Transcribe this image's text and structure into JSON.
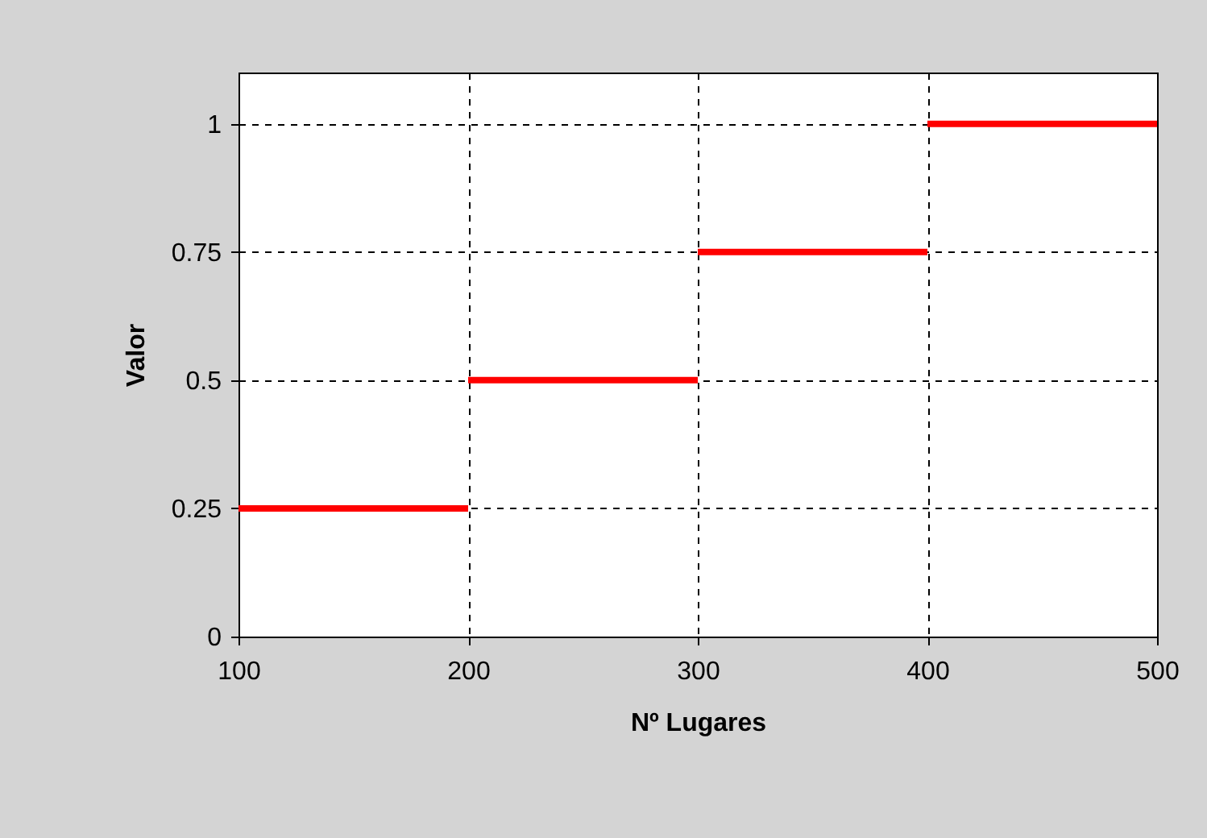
{
  "chart_data": {
    "type": "line",
    "xlabel": "Nº Lugares",
    "ylabel": "Valor",
    "series": [
      {
        "color": "#ff0000",
        "x": [
          100,
          200
        ],
        "values": [
          0.25,
          0.25
        ]
      },
      {
        "color": "#ff0000",
        "x": [
          200,
          300
        ],
        "values": [
          0.5,
          0.5
        ]
      },
      {
        "color": "#ff0000",
        "x": [
          300,
          400
        ],
        "values": [
          0.75,
          0.75
        ]
      },
      {
        "color": "#ff0000",
        "x": [
          400,
          500
        ],
        "values": [
          1,
          1
        ]
      }
    ],
    "xlim": [
      100,
      500
    ],
    "xticks": [
      100,
      200,
      300,
      400,
      500
    ],
    "ylim": [
      0,
      1.1
    ],
    "yticks": [
      0,
      0.25,
      0.5,
      0.75,
      1
    ],
    "grid": true,
    "line_style": "solid",
    "marker": "none",
    "legend": false
  }
}
